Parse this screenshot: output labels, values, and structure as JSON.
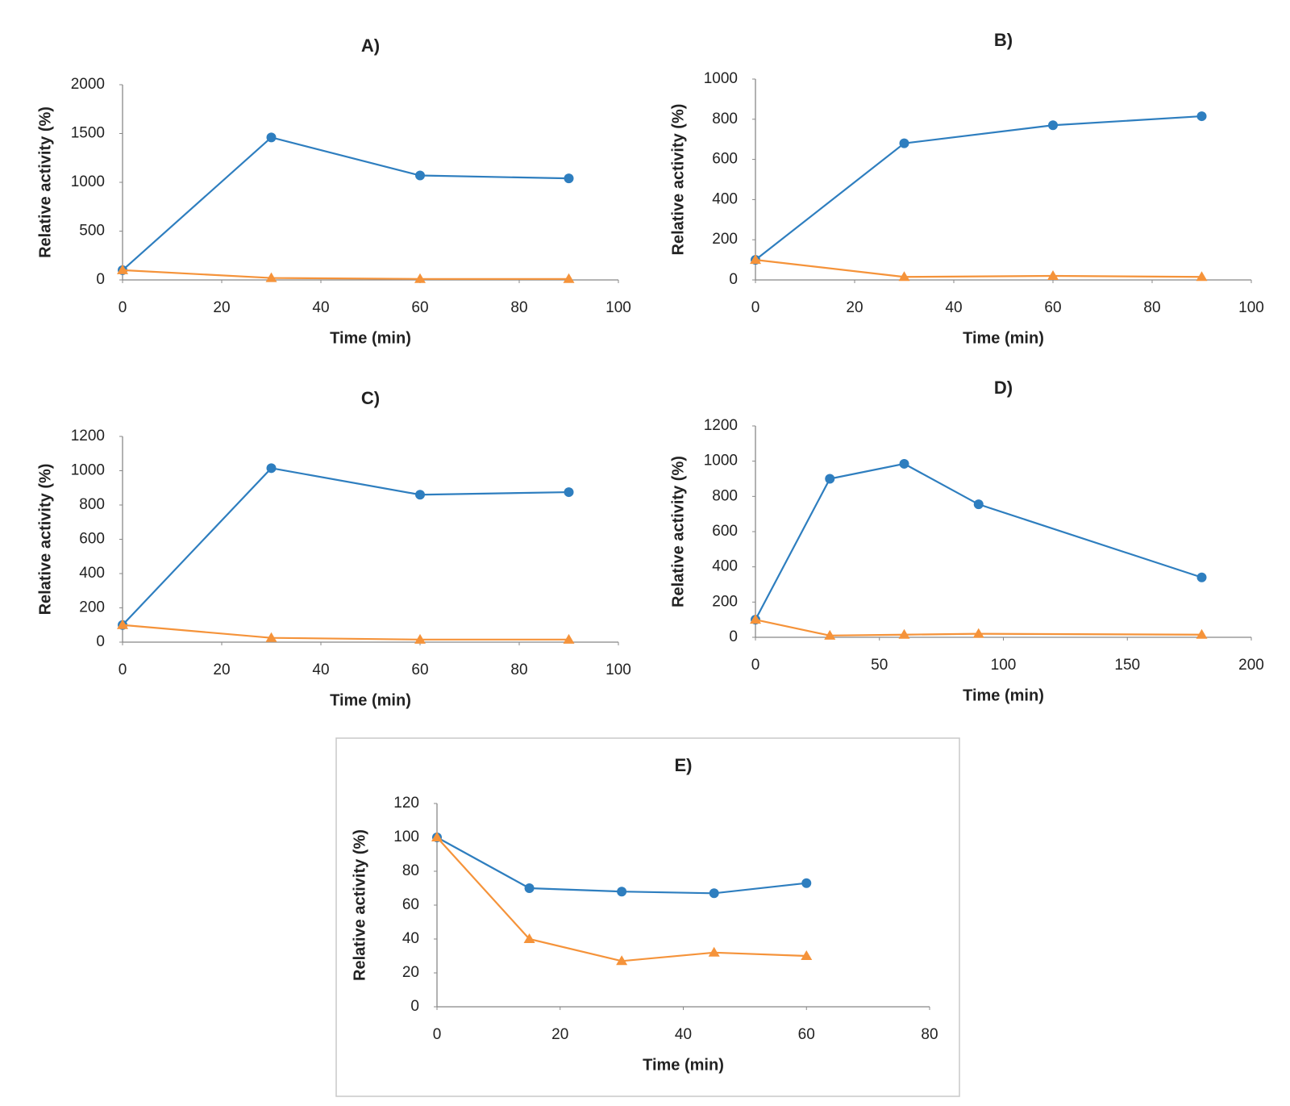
{
  "chart_data": [
    {
      "type": "line",
      "title": "A)",
      "xlabel": "Time (min)",
      "ylabel": "Relative activity (%)",
      "x": [
        0,
        30,
        60,
        90
      ],
      "xlim": [
        0,
        100
      ],
      "xticks": [
        0,
        20,
        40,
        60,
        80,
        100
      ],
      "ylim": [
        0,
        2000
      ],
      "yticks": [
        0,
        500,
        1000,
        1500,
        2000
      ],
      "series": [
        {
          "color": "#2e7ebf",
          "marker": "circle",
          "values": [
            100,
            1460,
            1070,
            1040
          ]
        },
        {
          "color": "#f5933a",
          "marker": "triangle",
          "values": [
            100,
            20,
            10,
            10
          ]
        }
      ]
    },
    {
      "type": "line",
      "title": "B)",
      "xlabel": "Time (min)",
      "ylabel": "Relative activity (%)",
      "x": [
        0,
        30,
        60,
        90
      ],
      "xlim": [
        0,
        100
      ],
      "xticks": [
        0,
        20,
        40,
        60,
        80,
        100
      ],
      "ylim": [
        0,
        1000
      ],
      "yticks": [
        0,
        200,
        400,
        600,
        800,
        1000
      ],
      "series": [
        {
          "color": "#2e7ebf",
          "marker": "circle",
          "values": [
            100,
            680,
            770,
            815
          ]
        },
        {
          "color": "#f5933a",
          "marker": "triangle",
          "values": [
            100,
            15,
            20,
            15
          ]
        }
      ]
    },
    {
      "type": "line",
      "title": "C)",
      "xlabel": "Time (min)",
      "ylabel": "Relative activity (%)",
      "x": [
        0,
        30,
        60,
        90
      ],
      "xlim": [
        0,
        100
      ],
      "xticks": [
        0,
        20,
        40,
        60,
        80,
        100
      ],
      "ylim": [
        0,
        1200
      ],
      "yticks": [
        0,
        200,
        400,
        600,
        800,
        1000,
        1200
      ],
      "series": [
        {
          "color": "#2e7ebf",
          "marker": "circle",
          "values": [
            100,
            1015,
            860,
            875
          ]
        },
        {
          "color": "#f5933a",
          "marker": "triangle",
          "values": [
            100,
            25,
            15,
            15
          ]
        }
      ]
    },
    {
      "type": "line",
      "title": "D)",
      "xlabel": "Time (min)",
      "ylabel": "Relative activity (%)",
      "x": [
        0,
        30,
        60,
        90,
        180
      ],
      "xlim": [
        0,
        200
      ],
      "xticks": [
        0,
        50,
        100,
        150,
        200
      ],
      "ylim": [
        0,
        1200
      ],
      "yticks": [
        0,
        200,
        400,
        600,
        800,
        1000,
        1200
      ],
      "series": [
        {
          "color": "#2e7ebf",
          "marker": "circle",
          "values": [
            100,
            900,
            985,
            755,
            340
          ]
        },
        {
          "color": "#f5933a",
          "marker": "triangle",
          "values": [
            100,
            10,
            15,
            20,
            15
          ]
        }
      ]
    },
    {
      "type": "line",
      "title": "E)",
      "xlabel": "Time (min)",
      "ylabel": "Relative activity (%)",
      "x": [
        0,
        15,
        30,
        45,
        60
      ],
      "xlim": [
        0,
        80
      ],
      "xticks": [
        0,
        20,
        40,
        60,
        80
      ],
      "ylim": [
        0,
        120
      ],
      "yticks": [
        0,
        20,
        40,
        60,
        80,
        100,
        120
      ],
      "series": [
        {
          "color": "#2e7ebf",
          "marker": "circle",
          "values": [
            100,
            70,
            68,
            67,
            73
          ]
        },
        {
          "color": "#f5933a",
          "marker": "triangle",
          "values": [
            100,
            40,
            27,
            32,
            30
          ]
        }
      ]
    }
  ]
}
